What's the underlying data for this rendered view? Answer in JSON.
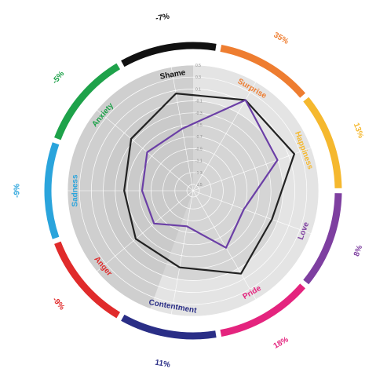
{
  "chart_data": {
    "type": "radar",
    "rlim": [
      -1.5,
      0.5
    ],
    "ticks": [
      "-1.5",
      "-1.3",
      "-1.1",
      "-0.9",
      "-0.7",
      "-0.5",
      "-0.3",
      "-0.1",
      "0.1",
      "0.3",
      "0.5"
    ],
    "categories": [
      {
        "label": "Shame",
        "pct": "-7%",
        "color": "#111111"
      },
      {
        "label": "Surprise",
        "pct": "35%",
        "color": "#ee7d30"
      },
      {
        "label": "Happiness",
        "pct": "13%",
        "color": "#f5b82e"
      },
      {
        "label": "Love",
        "pct": "8%",
        "color": "#7e3fa0"
      },
      {
        "label": "Pride",
        "pct": "18%",
        "color": "#e4247e"
      },
      {
        "label": "Contentment",
        "pct": "11%",
        "color": "#2a2e86"
      },
      {
        "label": "Anger",
        "pct": "-9%",
        "color": "#e02b2b"
      },
      {
        "label": "Sadness",
        "pct": "-9%",
        "color": "#2aa4dc"
      },
      {
        "label": "Anxiety",
        "pct": "-5%",
        "color": "#1ea24a"
      }
    ],
    "series": [
      {
        "color": "#222222",
        "values": [
          0.05,
          0.15,
          0.2,
          -0.2,
          0.0,
          -0.3,
          -0.35,
          -0.45,
          -0.25
        ]
      },
      {
        "color": "#6b3fa6",
        "values": [
          -0.55,
          0.15,
          -0.1,
          -0.7,
          -0.5,
          -1.0,
          -0.75,
          -0.75,
          -0.6
        ]
      }
    ]
  }
}
